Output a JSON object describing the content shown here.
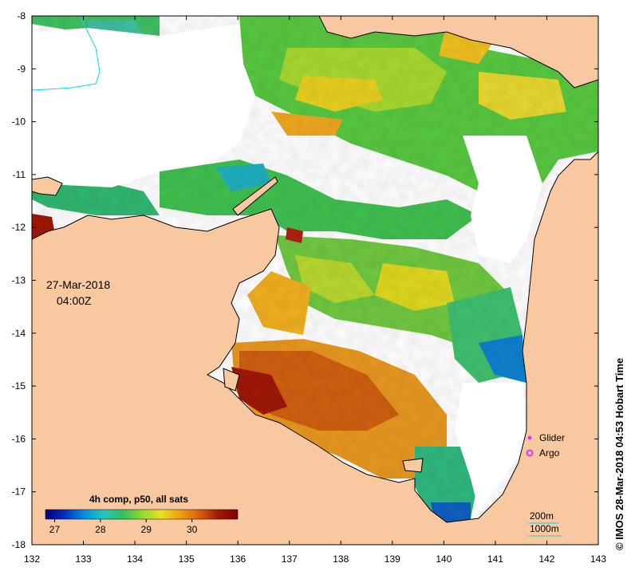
{
  "map": {
    "date_line1": "27-Mar-2018",
    "date_line2": "04:00Z",
    "credit": "© IMOS 28-Mar-2018 04:53 Hobart Time",
    "lon_ticks": [
      "132",
      "133",
      "134",
      "135",
      "136",
      "137",
      "138",
      "139",
      "140",
      "141",
      "142",
      "143"
    ],
    "lat_ticks": [
      "-8",
      "-9",
      "-10",
      "-11",
      "-12",
      "-13",
      "-14",
      "-15",
      "-16",
      "-17",
      "-18"
    ],
    "legend": {
      "glider_label": "Glider",
      "argo_label": "Argo",
      "glider_color": "#e633e6",
      "argo_color": "#e633e6"
    },
    "isobaths": {
      "shallow_label": "200m",
      "deep_label": "1000m",
      "shallow_color": "#00d8ff",
      "deep_color": "#40c8a8"
    },
    "colorbar": {
      "title": "4h comp, p50, all sats",
      "ticks": [
        "27",
        "28",
        "29",
        "30"
      ],
      "range": [
        26.8,
        31
      ],
      "colors": [
        "#00007f",
        "#0030c0",
        "#0090e0",
        "#20c8c0",
        "#30c060",
        "#90d830",
        "#e8e020",
        "#f0a010",
        "#d86010",
        "#a01808",
        "#7f0000"
      ]
    },
    "colors": {
      "land": "#f8c8a0",
      "nodata": "#ffffff",
      "coast": "#000000"
    }
  }
}
